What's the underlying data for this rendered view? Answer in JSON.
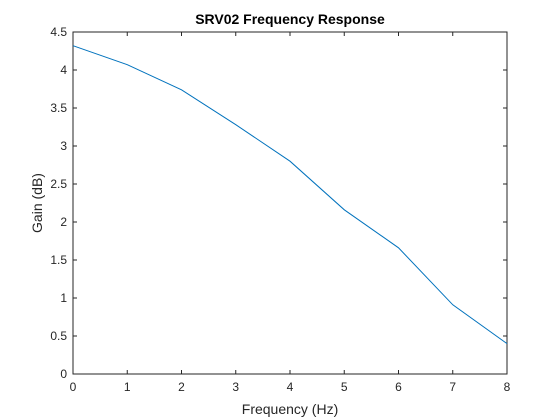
{
  "chart_data": {
    "type": "line",
    "title": "SRV02 Frequency Response",
    "xlabel": "Frequency (Hz)",
    "ylabel": "Gain (dB)",
    "xlim": [
      0,
      8
    ],
    "ylim": [
      0,
      4.5
    ],
    "xticks": [
      "0",
      "1",
      "2",
      "3",
      "4",
      "5",
      "6",
      "7",
      "8"
    ],
    "yticks": [
      "0",
      "0.5",
      "1",
      "1.5",
      "2",
      "2.5",
      "3",
      "3.5",
      "4",
      "4.5"
    ],
    "grid": false,
    "line_color": "#0072BD",
    "series": [
      {
        "x": [
          0,
          1,
          2,
          3,
          4,
          5,
          6,
          7,
          8
        ],
        "values": [
          4.32,
          4.07,
          3.74,
          3.28,
          2.8,
          2.16,
          1.66,
          0.91,
          0.4
        ]
      }
    ]
  }
}
